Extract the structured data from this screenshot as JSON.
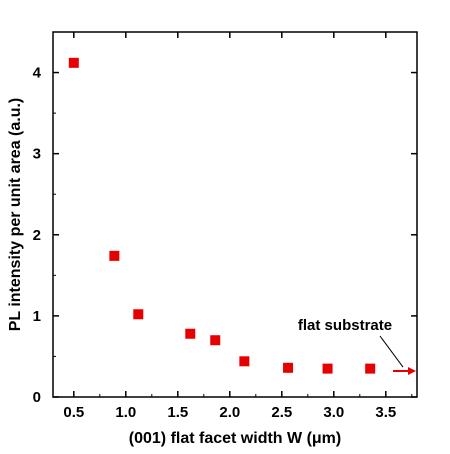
{
  "chart_data": {
    "type": "scatter",
    "xlabel": "(001) flat facet width W (μm)",
    "ylabel": "PL intensity per unit area (a.u.)",
    "xlim": [
      0.3,
      3.8
    ],
    "ylim": [
      0,
      4.5
    ],
    "xticks": [
      0.5,
      1.0,
      1.5,
      2.0,
      2.5,
      3.0,
      3.5
    ],
    "xtick_labels": [
      "0.5",
      "1.0",
      "1.5",
      "2.0",
      "2.5",
      "3.0",
      "3.5"
    ],
    "yticks": [
      0,
      1,
      2,
      3,
      4
    ],
    "ytick_labels": [
      "0",
      "1",
      "2",
      "3",
      "4"
    ],
    "grid": false,
    "series": [
      {
        "marker": "square",
        "color": "#e60000",
        "points": [
          {
            "x": 0.5,
            "y": 4.12
          },
          {
            "x": 0.89,
            "y": 1.74
          },
          {
            "x": 1.12,
            "y": 1.02
          },
          {
            "x": 1.62,
            "y": 0.78
          },
          {
            "x": 1.86,
            "y": 0.7
          },
          {
            "x": 2.14,
            "y": 0.44
          },
          {
            "x": 2.56,
            "y": 0.36
          },
          {
            "x": 2.94,
            "y": 0.35
          },
          {
            "x": 3.35,
            "y": 0.35
          }
        ]
      }
    ],
    "annotations": [
      {
        "text": "flat substrate",
        "arrow_y": 0.32,
        "arrow_color": "#e60000"
      }
    ]
  }
}
